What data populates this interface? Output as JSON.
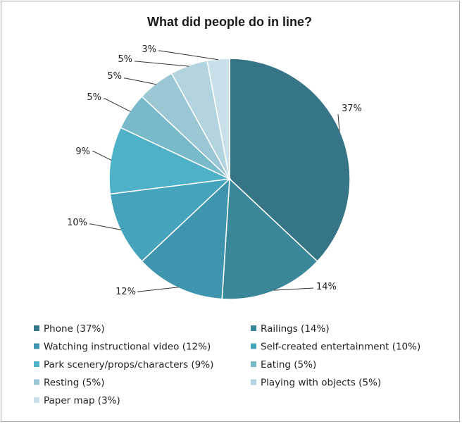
{
  "chart_data": {
    "type": "pie",
    "title": "What did people do in line?",
    "legend_position": "bottom",
    "slices": [
      {
        "label": "Phone",
        "value": 37,
        "data_label": "37%",
        "legend": "Phone (37%)",
        "color": "#357586"
      },
      {
        "label": "Railings",
        "value": 14,
        "data_label": "14%",
        "legend": "Railings (14%)",
        "color": "#3a8799"
      },
      {
        "label": "Watching instructional video",
        "value": 12,
        "data_label": "12%",
        "legend": "Watching instructional video (12%)",
        "color": "#3f95ad"
      },
      {
        "label": "Self-created entertainment",
        "value": 10,
        "data_label": "10%",
        "legend": "Self-created entertainment (10%)",
        "color": "#46a3bc"
      },
      {
        "label": "Park scenery/props/characters",
        "value": 9,
        "data_label": "9%",
        "legend": "Park scenery/props/characters (9%)",
        "color": "#4eb1c7"
      },
      {
        "label": "Eating",
        "value": 5,
        "data_label": "5%",
        "legend": "Eating (5%)",
        "color": "#78b9ca"
      },
      {
        "label": "Resting",
        "value": 5,
        "data_label": "5%",
        "legend": "Resting (5%)",
        "color": "#9bc7d5"
      },
      {
        "label": "Playing with objects",
        "value": 5,
        "data_label": "5%",
        "legend": "Playing with objects (5%)",
        "color": "#b2d4df"
      },
      {
        "label": "Paper map",
        "value": 3,
        "data_label": "3%",
        "legend": "Paper map (3%)",
        "color": "#c9e0e8"
      }
    ]
  }
}
